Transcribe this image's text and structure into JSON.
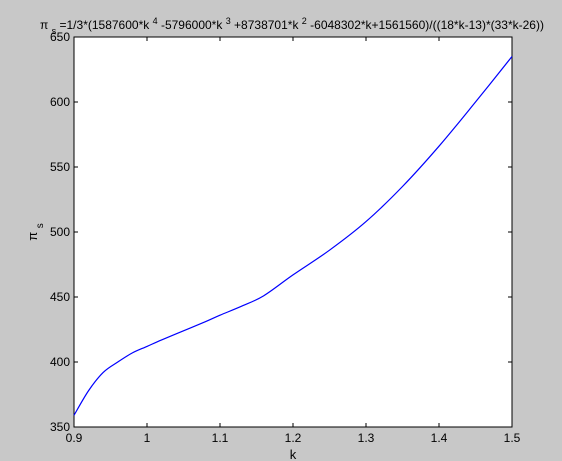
{
  "chart_data": {
    "type": "line",
    "title_parts": {
      "t1": "π",
      "t2": "s",
      "t3": "=1/3*(1587600*k",
      "t4": "4",
      "t5": "-5796000*k",
      "t6": "3",
      "t7": "+8738701*k",
      "t8": "2",
      "t9": "-6048302*k+1561560)/((18*k-13)*(33*k-26))"
    },
    "xlabel": "k",
    "ylabel_main": "π",
    "ylabel_sub": "s",
    "xlim": [
      0.9,
      1.5
    ],
    "ylim": [
      350,
      650
    ],
    "xticks": [
      0.9,
      1,
      1.1,
      1.2,
      1.3,
      1.4,
      1.5
    ],
    "xtick_labels": [
      "0.9",
      "1",
      "1.1",
      "1.2",
      "1.3",
      "1.4",
      "1.5"
    ],
    "yticks": [
      350,
      400,
      450,
      500,
      550,
      600,
      650
    ],
    "ytick_labels": [
      "350",
      "400",
      "450",
      "500",
      "550",
      "600",
      "650"
    ],
    "grid": false,
    "background_color": "#c8c8c8",
    "plot_color": "#ffffff",
    "line_color": "#0000ff",
    "series": [
      {
        "x": [
          0.9,
          0.92,
          0.94,
          0.96,
          0.98,
          1.0,
          1.02,
          1.05,
          1.08,
          1.1,
          1.13,
          1.16,
          1.2,
          1.25,
          1.3,
          1.35,
          1.4,
          1.45,
          1.5
        ],
        "values": [
          359,
          378,
          392,
          400,
          407,
          412,
          417,
          424,
          431,
          436,
          443,
          451,
          467,
          486,
          508,
          535,
          566,
          600,
          635
        ]
      }
    ]
  }
}
